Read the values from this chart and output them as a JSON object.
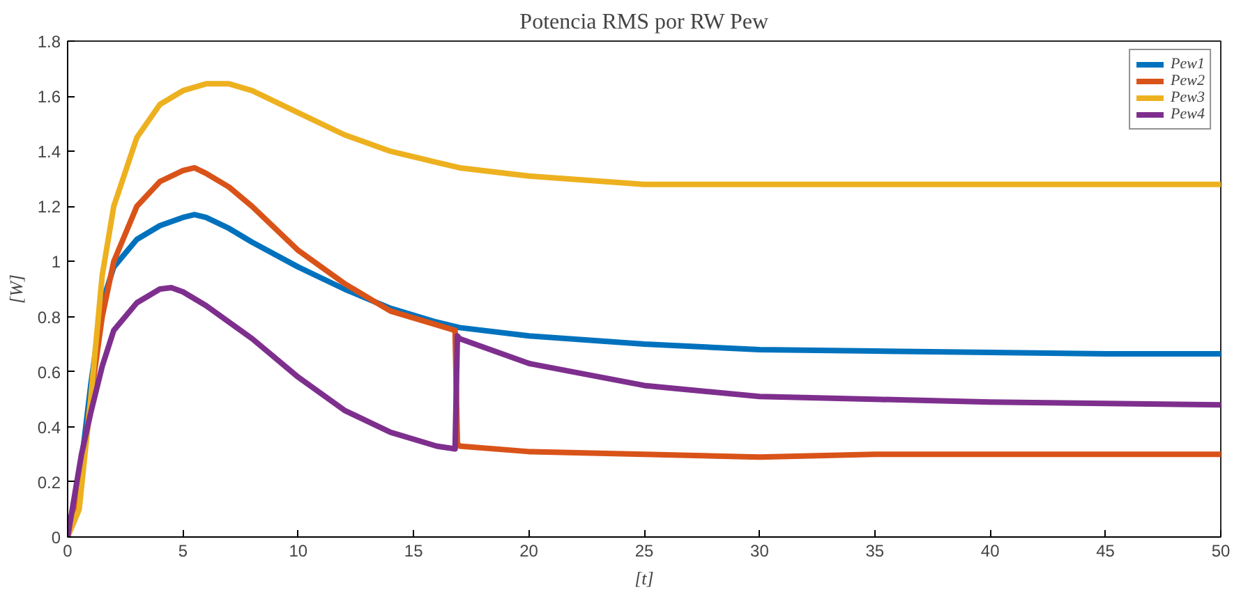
{
  "chart_data": {
    "type": "line",
    "title": "Potencia RMS por RW Pew",
    "xlabel": "[t]",
    "ylabel": "[W]",
    "xlim": [
      0,
      50
    ],
    "xticks": [
      0,
      5,
      10,
      15,
      20,
      25,
      30,
      35,
      40,
      45,
      50
    ],
    "ylim": [
      0,
      1.8
    ],
    "yticks": [
      0,
      0.2,
      0.4,
      0.6,
      0.8,
      1,
      1.2,
      1.4,
      1.6,
      1.8
    ],
    "grid": false,
    "legend": "top right",
    "line_style": "solid",
    "series": [
      {
        "name": "Pew1",
        "color": "#0072bd",
        "x": [
          0,
          0.5,
          1,
          1.5,
          2,
          3,
          4,
          5,
          5.5,
          6,
          7,
          8,
          10,
          12,
          14,
          16,
          17,
          20,
          25,
          30,
          35,
          40,
          45,
          50
        ],
        "values": [
          0,
          0.2,
          0.55,
          0.85,
          0.98,
          1.08,
          1.13,
          1.16,
          1.17,
          1.16,
          1.12,
          1.07,
          0.98,
          0.9,
          0.83,
          0.78,
          0.76,
          0.73,
          0.7,
          0.68,
          0.675,
          0.67,
          0.665,
          0.665
        ]
      },
      {
        "name": "Pew2",
        "color": "#d95319",
        "x": [
          0,
          0.5,
          1,
          1.5,
          2,
          3,
          4,
          5,
          5.5,
          6,
          7,
          8,
          10,
          12,
          14,
          16,
          16.8,
          16.9,
          17,
          20,
          25,
          30,
          35,
          40,
          45,
          50
        ],
        "values": [
          0,
          0.15,
          0.5,
          0.8,
          1.0,
          1.2,
          1.29,
          1.33,
          1.34,
          1.32,
          1.27,
          1.2,
          1.04,
          0.92,
          0.82,
          0.77,
          0.75,
          0.34,
          0.33,
          0.31,
          0.3,
          0.29,
          0.3,
          0.3,
          0.3,
          0.3
        ]
      },
      {
        "name": "Pew3",
        "color": "#edb120",
        "x": [
          0,
          0.5,
          1,
          1.5,
          2,
          3,
          4,
          5,
          6,
          7,
          8,
          10,
          12,
          14,
          16,
          17,
          20,
          25,
          30,
          35,
          40,
          45,
          50
        ],
        "values": [
          0,
          0.1,
          0.5,
          0.95,
          1.2,
          1.45,
          1.57,
          1.62,
          1.645,
          1.645,
          1.62,
          1.54,
          1.46,
          1.4,
          1.36,
          1.34,
          1.31,
          1.28,
          1.28,
          1.28,
          1.28,
          1.28,
          1.28
        ]
      },
      {
        "name": "Pew4",
        "color": "#7e2f8e",
        "x": [
          0,
          0.3,
          0.6,
          1,
          1.5,
          2,
          3,
          4,
          4.5,
          5,
          6,
          8,
          10,
          12,
          14,
          16,
          16.8,
          16.9,
          17,
          20,
          25,
          30,
          35,
          40,
          45,
          50
        ],
        "values": [
          0,
          0.15,
          0.3,
          0.45,
          0.62,
          0.75,
          0.85,
          0.9,
          0.905,
          0.89,
          0.84,
          0.72,
          0.58,
          0.46,
          0.38,
          0.33,
          0.32,
          0.73,
          0.72,
          0.63,
          0.55,
          0.51,
          0.5,
          0.49,
          0.485,
          0.48
        ]
      }
    ]
  }
}
